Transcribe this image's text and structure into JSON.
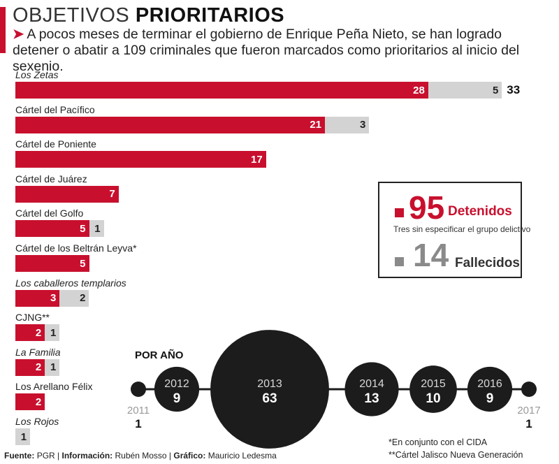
{
  "header": {
    "title_light": "OBJETIVOS",
    "title_bold": "PRIORITARIOS",
    "subtitle": "A pocos meses de terminar el gobierno de Enrique Peña Nieto, se han logrado detener o abatir a 109 criminales que fueron marcados como prioritarios al inicio del sexenio."
  },
  "summary": {
    "detained_value": "95",
    "detained_label": "Detenidos",
    "detained_note": "Tres sin especificar el grupo delictivo",
    "deceased_value": "14",
    "deceased_label": "Fallecidos"
  },
  "year_section_title": "POR AÑO",
  "footnotes": {
    "note1": "*En conjunto con el CIDA",
    "note2": "**Cártel Jalisco Nueva Generación"
  },
  "credits": {
    "fuente_label": "Fuente:",
    "fuente_value": "PGR",
    "info_label": "Información:",
    "info_value": "Rubén Mosso",
    "grafico_label": "Gráfico:",
    "grafico_value": "Mauricio Ledesma"
  },
  "chart_data": [
    {
      "type": "bar",
      "orientation": "horizontal",
      "stacked": true,
      "categories": [
        "Los Zetas",
        "Cártel del Pacífico",
        "Cártel de Poniente",
        "Cártel de Juárez",
        "Cártel del Golfo",
        "Cártel de los Beltrán Leyva*",
        "Los caballeros templarios",
        "CJNG**",
        "La Familia",
        "Los Arellano Félix",
        "Los Rojos"
      ],
      "italic": [
        true,
        false,
        false,
        false,
        false,
        false,
        true,
        false,
        true,
        false,
        true
      ],
      "series": [
        {
          "name": "Detenidos",
          "color": "#c8102e",
          "values": [
            28,
            21,
            17,
            7,
            5,
            5,
            3,
            2,
            2,
            2,
            0
          ]
        },
        {
          "name": "Fallecidos",
          "color": "#d3d3d3",
          "values": [
            5,
            3,
            0,
            0,
            1,
            0,
            2,
            1,
            1,
            0,
            1
          ]
        }
      ],
      "totals": [
        "33",
        "",
        "",
        "",
        "",
        "",
        "",
        "",
        "",
        "",
        ""
      ]
    },
    {
      "type": "bubble",
      "title": "POR AÑO",
      "x": [
        "2011",
        "2012",
        "2013",
        "2014",
        "2015",
        "2016",
        "2017"
      ],
      "values": [
        1,
        9,
        63,
        13,
        10,
        9,
        1
      ],
      "color": "#1c1c1c"
    }
  ]
}
